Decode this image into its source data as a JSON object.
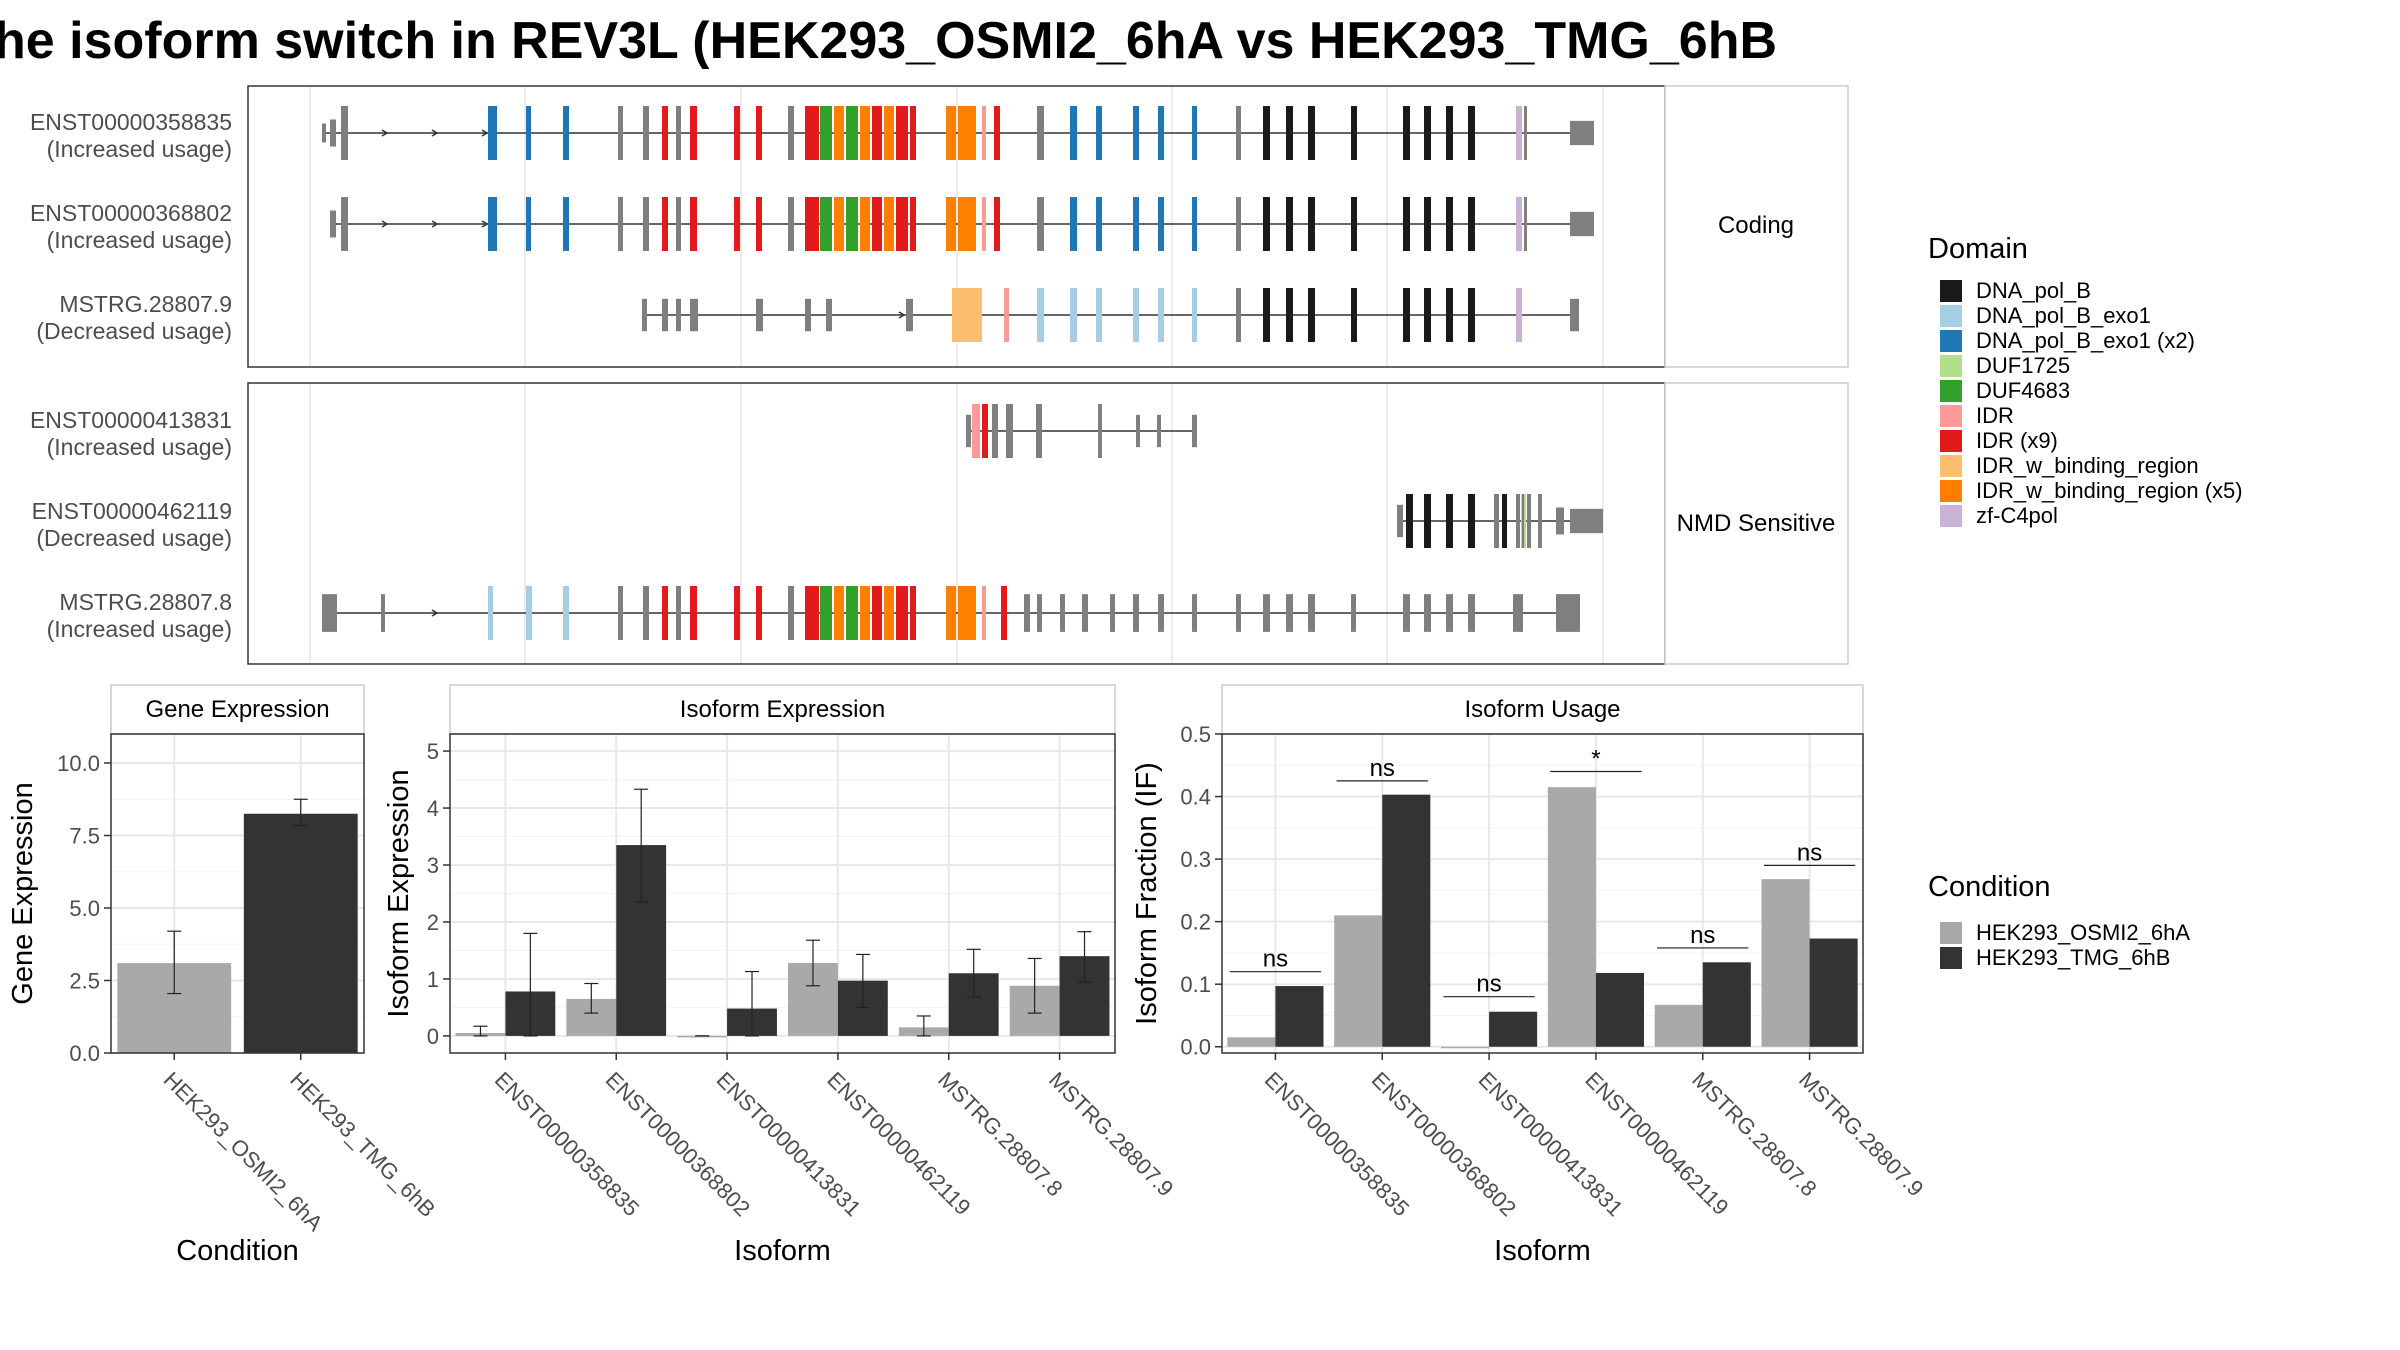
{
  "title": "he isoform switch in REV3L (HEK293_OSMI2_6hA vs HEK293_TMG_6hB",
  "structure": {
    "groups": [
      {
        "label": "Coding",
        "isoforms": [
          {
            "id": "ENST00000358835",
            "note": "(Increased usage)"
          },
          {
            "id": "ENST00000368802",
            "note": "(Increased usage)"
          },
          {
            "id": "MSTRG.28807.9",
            "note": "(Decreased usage)"
          }
        ]
      },
      {
        "label": "NMD Sensitive",
        "isoforms": [
          {
            "id": "ENST00000413831",
            "note": "(Increased usage)"
          },
          {
            "id": "ENST00000462119",
            "note": "(Decreased usage)"
          },
          {
            "id": "MSTRG.28807.8",
            "note": "(Increased usage)"
          }
        ]
      }
    ]
  },
  "domain_legend": {
    "title": "Domain",
    "items": [
      {
        "label": "DNA_pol_B",
        "color": "#1a1a1a"
      },
      {
        "label": "DNA_pol_B_exo1",
        "color": "#a6cee3"
      },
      {
        "label": "DNA_pol_B_exo1 (x2)",
        "color": "#1f78b4"
      },
      {
        "label": "DUF1725",
        "color": "#b2df8a"
      },
      {
        "label": "DUF4683",
        "color": "#33a02c"
      },
      {
        "label": "IDR",
        "color": "#fb9a99"
      },
      {
        "label": "IDR (x9)",
        "color": "#e31a1c"
      },
      {
        "label": "IDR_w_binding_region",
        "color": "#fdbf6f"
      },
      {
        "label": "IDR_w_binding_region (x5)",
        "color": "#ff7f00"
      },
      {
        "label": "zf-C4pol",
        "color": "#cab2d6"
      }
    ]
  },
  "condition_legend": {
    "title": "Condition",
    "items": [
      {
        "label": "HEK293_OSMI2_6hA",
        "color": "#a9a9a9"
      },
      {
        "label": "HEK293_TMG_6hB",
        "color": "#333333"
      }
    ]
  },
  "chart_data": [
    {
      "type": "bar",
      "title": "Gene Expression",
      "xlabel": "Condition",
      "ylabel": "Gene Expression",
      "ylim": [
        0,
        11
      ],
      "yticks": [
        "0.0",
        "2.5",
        "5.0",
        "7.5",
        "10.0"
      ],
      "categories": [
        "HEK293_OSMI2_6hA",
        "HEK293_TMG_6hB"
      ],
      "values": [
        3.1,
        8.25
      ],
      "errors": [
        [
          2.05,
          4.2
        ],
        [
          7.85,
          8.75
        ]
      ]
    },
    {
      "type": "bar",
      "title": "Isoform Expression",
      "xlabel": "Isoform",
      "ylabel": "Isoform Expression",
      "ylim": [
        -0.3,
        5.3
      ],
      "yticks": [
        "0",
        "1",
        "2",
        "3",
        "4",
        "5"
      ],
      "categories": [
        "ENST00000358835",
        "ENST00000368802",
        "ENST00000413831",
        "ENST00000462119",
        "MSTRG.28807.8",
        "MSTRG.28807.9"
      ],
      "series": [
        {
          "name": "HEK293_OSMI2_6hA",
          "values": [
            0.05,
            0.65,
            0.0,
            1.28,
            0.15,
            0.88
          ],
          "errors": [
            [
              0.0,
              0.17
            ],
            [
              0.4,
              0.92
            ],
            [
              0.0,
              0.0
            ],
            [
              0.88,
              1.68
            ],
            [
              0.0,
              0.35
            ],
            [
              0.4,
              1.36
            ]
          ]
        },
        {
          "name": "HEK293_TMG_6hB",
          "values": [
            0.78,
            3.35,
            0.48,
            0.97,
            1.1,
            1.4
          ],
          "errors": [
            [
              0.0,
              1.8
            ],
            [
              2.35,
              4.33
            ],
            [
              0.0,
              1.13
            ],
            [
              0.5,
              1.43
            ],
            [
              0.68,
              1.52
            ],
            [
              0.95,
              1.83
            ]
          ]
        }
      ]
    },
    {
      "type": "bar",
      "title": "Isoform Usage",
      "xlabel": "Isoform",
      "ylabel": "Isoform Fraction (IF)",
      "ylim": [
        -0.01,
        0.5
      ],
      "yticks": [
        "0.0",
        "0.1",
        "0.2",
        "0.3",
        "0.4",
        "0.5"
      ],
      "categories": [
        "ENST00000358835",
        "ENST00000368802",
        "ENST00000413831",
        "ENST00000462119",
        "MSTRG.28807.8",
        "MSTRG.28807.9"
      ],
      "series": [
        {
          "name": "HEK293_OSMI2_6hA",
          "values": [
            0.015,
            0.21,
            0.0,
            0.415,
            0.067,
            0.268
          ]
        },
        {
          "name": "HEK293_TMG_6hB",
          "values": [
            0.097,
            0.403,
            0.056,
            0.118,
            0.135,
            0.173
          ]
        }
      ],
      "significance": [
        "ns",
        "ns",
        "ns",
        "*",
        "ns",
        "ns"
      ],
      "significance_y": [
        0.12,
        0.425,
        0.08,
        0.44,
        0.158,
        0.29
      ]
    }
  ]
}
